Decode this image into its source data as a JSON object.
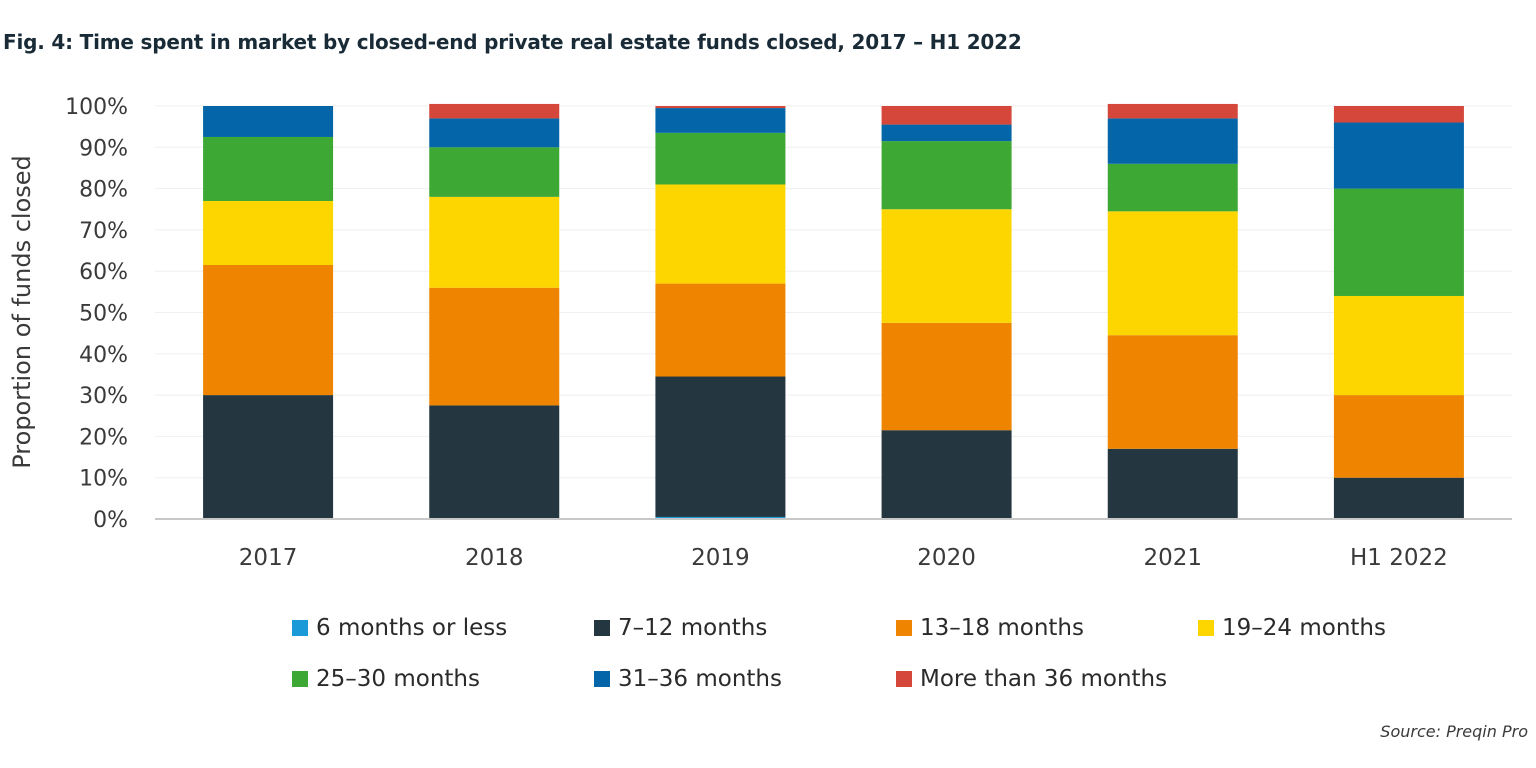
{
  "chart_data": {
    "type": "bar",
    "stacked": true,
    "title": "Fig. 4: Time spent in market by closed-end private real estate funds closed, 2017 – H1 2022",
    "xlabel": "",
    "ylabel": "Proportion of funds closed",
    "ylim": [
      0,
      100
    ],
    "yticks": [
      "0%",
      "10%",
      "20%",
      "30%",
      "40%",
      "50%",
      "60%",
      "70%",
      "80%",
      "90%",
      "100%"
    ],
    "categories": [
      "2017",
      "2018",
      "2019",
      "2020",
      "2021",
      "H1 2022"
    ],
    "series": [
      {
        "name": "6 months or less",
        "color": "#1a9ad6",
        "values": [
          0,
          0,
          0.5,
          0,
          0,
          0
        ]
      },
      {
        "name": "7–12 months",
        "color": "#243640",
        "values": [
          30,
          27.5,
          34,
          21.5,
          17,
          10
        ]
      },
      {
        "name": "13–18 months",
        "color": "#ee8400",
        "values": [
          31.5,
          28.5,
          22.5,
          26,
          27.5,
          20
        ]
      },
      {
        "name": "19–24 months",
        "color": "#fdd600",
        "values": [
          15.5,
          22,
          24,
          27.5,
          30,
          24
        ]
      },
      {
        "name": "25–30 months",
        "color": "#3ea834",
        "values": [
          15.5,
          12,
          12.5,
          16.5,
          11.5,
          26
        ]
      },
      {
        "name": "31–36 months",
        "color": "#0466a8",
        "values": [
          7.5,
          7,
          6,
          4,
          11,
          16
        ]
      },
      {
        "name": "More than 36 months",
        "color": "#d5463b",
        "values": [
          0,
          3.5,
          0.5,
          4.5,
          3.5,
          4
        ]
      }
    ],
    "legend": "bottom",
    "grid": true
  },
  "source": "Source: Preqin Pro"
}
